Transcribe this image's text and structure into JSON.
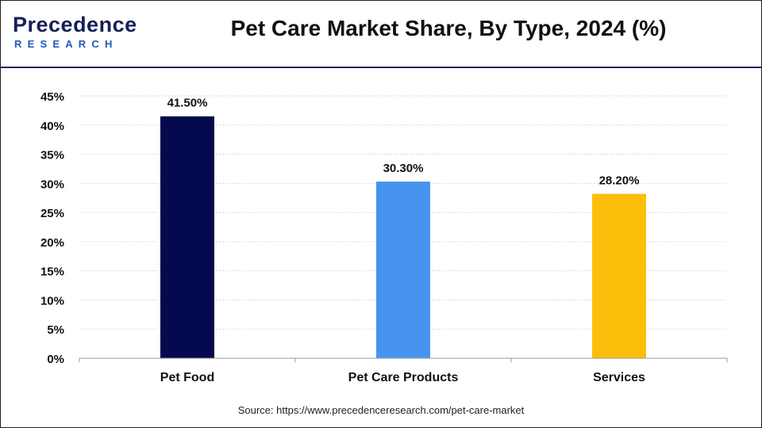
{
  "header": {
    "logo_top": "Precedence",
    "logo_bottom": "RESEARCH",
    "title": "Pet Care Market Share, By Type, 2024 (%)"
  },
  "footer": {
    "source": "Source: https://www.precedenceresearch.com/pet-care-market"
  },
  "colors": {
    "brand_navy": "#15205a",
    "brand_blue": "#1f5ab8"
  },
  "chart_data": {
    "type": "bar",
    "title": "Pet Care Market Share, By Type, 2024 (%)",
    "xlabel": "",
    "ylabel": "",
    "categories": [
      "Pet Food",
      "Pet Care Products",
      "Services"
    ],
    "values": [
      41.5,
      30.3,
      28.2
    ],
    "value_labels": [
      "41.50%",
      "30.30%",
      "28.20%"
    ],
    "bar_colors": [
      "#050a4f",
      "#4693f0",
      "#fbbf0b"
    ],
    "ylim": [
      0,
      45
    ],
    "yticks": [
      0,
      5,
      10,
      15,
      20,
      25,
      30,
      35,
      40,
      45
    ],
    "ytick_labels": [
      "0%",
      "5%",
      "10%",
      "15%",
      "20%",
      "25%",
      "30%",
      "35%",
      "40%",
      "45%"
    ],
    "grid": true,
    "legend": "none"
  }
}
